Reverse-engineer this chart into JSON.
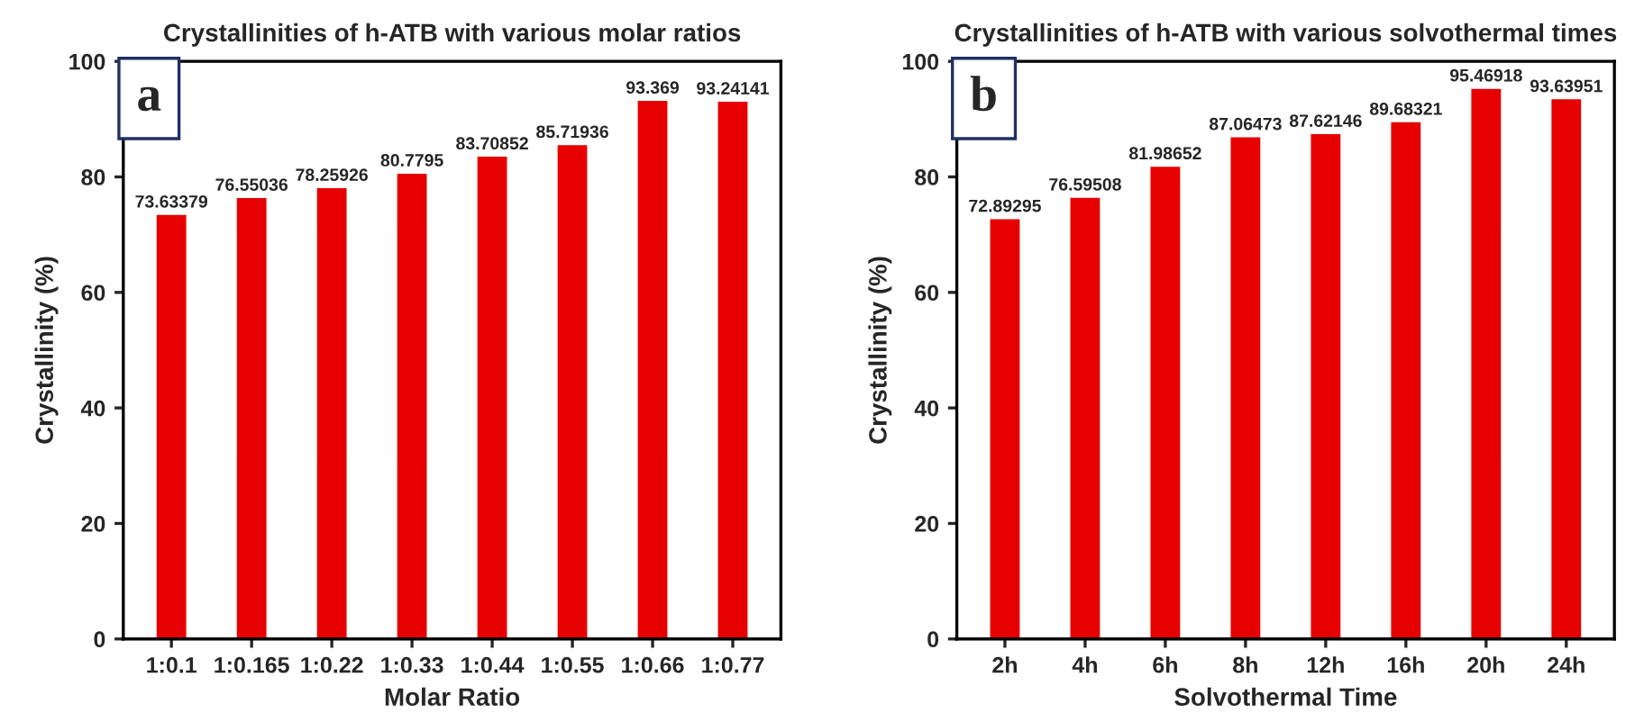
{
  "chart_data": [
    {
      "type": "bar",
      "title": "Crystallinities of h-ATB with various molar ratios",
      "xlabel": "Molar Ratio",
      "ylabel": "Crystallinity (%)",
      "categories": [
        "1:0.1",
        "1:0.165",
        "1:0.22",
        "1:0.33",
        "1:0.44",
        "1:0.55",
        "1:0.66",
        "1:0.77"
      ],
      "values": [
        73.63379,
        76.55036,
        78.25926,
        80.7795,
        83.70852,
        85.71936,
        93.369,
        93.24141
      ],
      "color": "#e60000",
      "ylim": [
        0,
        100
      ],
      "yticks": [
        0,
        20,
        40,
        60,
        80,
        100
      ],
      "data_labels": true,
      "grid": false,
      "annotations": [
        "a"
      ]
    },
    {
      "type": "bar",
      "title": "Crystallinities of h-ATB with various solvothermal times",
      "xlabel": "Solvothermal Time",
      "ylabel": "Crystallinity (%)",
      "categories": [
        "2h",
        "4h",
        "6h",
        "8h",
        "12h",
        "16h",
        "20h",
        "24h"
      ],
      "values": [
        72.89295,
        76.59508,
        81.98652,
        87.06473,
        87.62146,
        89.68321,
        95.46918,
        93.63951
      ],
      "color": "#e60000",
      "ylim": [
        0,
        100
      ],
      "yticks": [
        0,
        20,
        40,
        60,
        80,
        100
      ],
      "data_labels": true,
      "grid": false,
      "annotations": [
        "b"
      ]
    }
  ]
}
